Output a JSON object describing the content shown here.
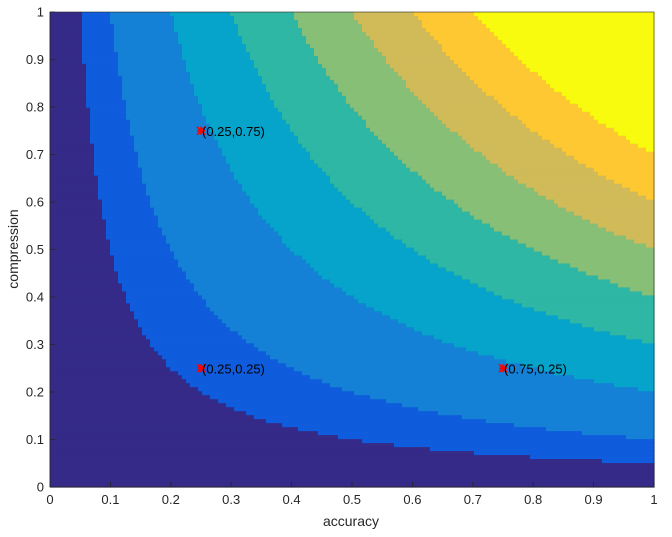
{
  "chart_data": {
    "type": "contour",
    "xlabel": "accuracy",
    "ylabel": "compression",
    "xlim": [
      0,
      1
    ],
    "ylim": [
      0,
      1
    ],
    "x_ticks": [
      "0",
      "0.1",
      "0.2",
      "0.3",
      "0.4",
      "0.5",
      "0.6",
      "0.7",
      "0.8",
      "0.9",
      "1"
    ],
    "y_ticks": [
      "0",
      "0.1",
      "0.2",
      "0.3",
      "0.4",
      "0.5",
      "0.6",
      "0.7",
      "0.8",
      "0.9",
      "1"
    ],
    "grid": false,
    "contour_levels": [
      0.05,
      0.1,
      0.2,
      0.3,
      0.4,
      0.5,
      0.6,
      0.7,
      0.8,
      0.9
    ],
    "fill_colors": [
      "#352a87",
      "#0f5cdd",
      "#1481d6",
      "#06a4ca",
      "#2eb7a4",
      "#87bf77",
      "#d1bb59",
      "#fec832",
      "#f9fb0e",
      "#f9fb0e",
      "#f9fb0e"
    ],
    "points": [
      {
        "x": 0.25,
        "y": 0.75,
        "label": "(0.25,0.75)"
      },
      {
        "x": 0.25,
        "y": 0.25,
        "label": "(0.25,0.25)"
      },
      {
        "x": 0.75,
        "y": 0.25,
        "label": "(0.75,0.25)"
      }
    ],
    "marker_color": "#ff0000"
  }
}
